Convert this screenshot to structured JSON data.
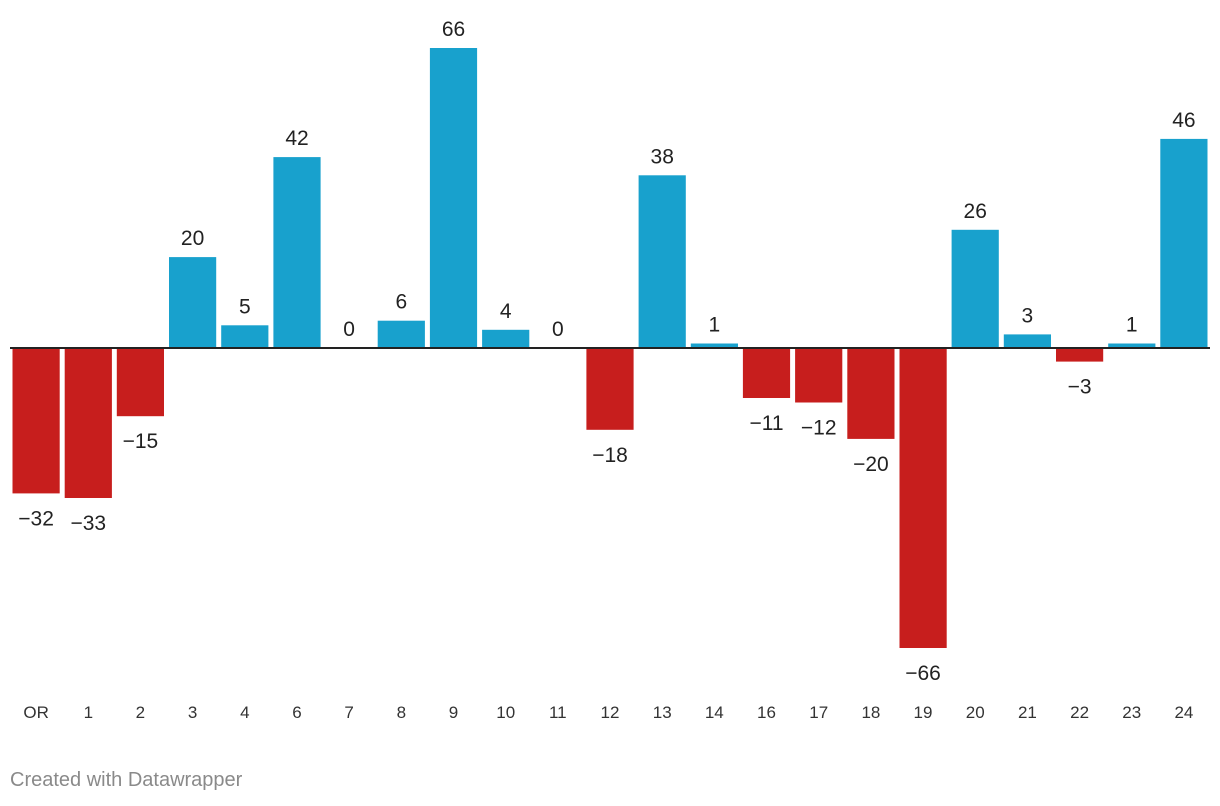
{
  "chart_data": {
    "type": "bar",
    "title": "",
    "xlabel": "",
    "ylabel": "",
    "categories": [
      "OR",
      "1",
      "2",
      "3",
      "4",
      "6",
      "7",
      "8",
      "9",
      "10",
      "11",
      "12",
      "13",
      "14",
      "16",
      "17",
      "18",
      "19",
      "20",
      "21",
      "22",
      "23",
      "24"
    ],
    "values": [
      -32,
      -33,
      -15,
      20,
      5,
      42,
      0,
      6,
      66,
      4,
      0,
      -18,
      38,
      1,
      -11,
      -12,
      -20,
      -66,
      26,
      3,
      -3,
      1,
      46
    ],
    "value_labels": [
      "−32",
      "−33",
      "−15",
      "20",
      "5",
      "42",
      "0",
      "6",
      "66",
      "4",
      "0",
      "−18",
      "38",
      "1",
      "−11",
      "−12",
      "−20",
      "−66",
      "26",
      "3",
      "−3",
      "1",
      "46"
    ],
    "ylim": [
      -66,
      66
    ],
    "grid": false,
    "colors": {
      "positive": "#18a1cd",
      "negative": "#c71e1d",
      "baseline": "#222222"
    }
  },
  "footer": {
    "credit": "Created with Datawrapper"
  }
}
